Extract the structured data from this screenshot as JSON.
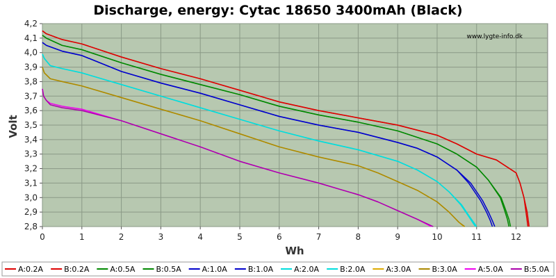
{
  "chart_data": {
    "type": "line",
    "title": "Discharge, energy: Cytac 18650 3400mAh (Black)",
    "xlabel": "Wh",
    "ylabel": "Volt",
    "watermark": "www.lygte-info.dk",
    "xlim": [
      0,
      12.8
    ],
    "ylim": [
      2.8,
      4.2
    ],
    "x_ticks": [
      0,
      1,
      2,
      3,
      4,
      5,
      6,
      7,
      8,
      9,
      10,
      11,
      12
    ],
    "y_ticks": [
      "4,2",
      "4,1",
      "4,0",
      "3,9",
      "3,8",
      "3,7",
      "3,6",
      "3,5",
      "3,4",
      "3,3",
      "3,2",
      "3,1",
      "3,0",
      "2,9",
      "2,8"
    ],
    "grid": true,
    "plot_background": "#b7c8b0",
    "legend_position": "bottom",
    "series": [
      {
        "name": "A:0.2A",
        "color": "#dd0000",
        "x": [
          0,
          0.1,
          0.5,
          1,
          2,
          3,
          4,
          5,
          6,
          7,
          8,
          9,
          10,
          10.5,
          11,
          11.5,
          12,
          12.1,
          12.2,
          12.25,
          12.3
        ],
        "y": [
          4.15,
          4.13,
          4.09,
          4.06,
          3.97,
          3.89,
          3.82,
          3.74,
          3.66,
          3.6,
          3.55,
          3.5,
          3.43,
          3.37,
          3.3,
          3.26,
          3.17,
          3.1,
          3.0,
          2.9,
          2.8
        ]
      },
      {
        "name": "B:0.2A",
        "color": "#dd0000",
        "x": [
          0,
          0.1,
          0.5,
          1,
          2,
          3,
          4,
          5,
          6,
          7,
          8,
          9,
          10,
          10.5,
          11,
          11.5,
          12,
          12.1,
          12.2,
          12.28,
          12.33
        ],
        "y": [
          4.15,
          4.13,
          4.09,
          4.06,
          3.97,
          3.89,
          3.82,
          3.74,
          3.66,
          3.6,
          3.55,
          3.5,
          3.43,
          3.37,
          3.3,
          3.26,
          3.17,
          3.1,
          3.0,
          2.9,
          2.8
        ]
      },
      {
        "name": "A:0.5A",
        "color": "#008800",
        "x": [
          0,
          0.1,
          0.5,
          1,
          2,
          3,
          4,
          5,
          6,
          7,
          8,
          9,
          10,
          10.5,
          11,
          11.3,
          11.6,
          11.7,
          11.78,
          11.82
        ],
        "y": [
          4.12,
          4.1,
          4.05,
          4.02,
          3.93,
          3.85,
          3.78,
          3.71,
          3.63,
          3.57,
          3.52,
          3.46,
          3.37,
          3.3,
          3.21,
          3.12,
          3.0,
          2.92,
          2.85,
          2.8
        ]
      },
      {
        "name": "B:0.5A",
        "color": "#008800",
        "x": [
          0,
          0.1,
          0.5,
          1,
          2,
          3,
          4,
          5,
          6,
          7,
          8,
          9,
          10,
          10.5,
          11,
          11.3,
          11.62,
          11.73,
          11.82,
          11.86
        ],
        "y": [
          4.12,
          4.1,
          4.05,
          4.02,
          3.93,
          3.85,
          3.78,
          3.71,
          3.63,
          3.57,
          3.52,
          3.46,
          3.37,
          3.3,
          3.21,
          3.12,
          3.0,
          2.92,
          2.85,
          2.8
        ]
      },
      {
        "name": "A:1.0A",
        "color": "#0000cc",
        "x": [
          0,
          0.1,
          0.5,
          1,
          2,
          3,
          4,
          5,
          6,
          7,
          8,
          9,
          9.5,
          10,
          10.5,
          10.8,
          11.1,
          11.25,
          11.35,
          11.4
        ],
        "y": [
          4.07,
          4.05,
          4.01,
          3.98,
          3.87,
          3.79,
          3.72,
          3.64,
          3.56,
          3.5,
          3.45,
          3.38,
          3.34,
          3.28,
          3.19,
          3.1,
          2.98,
          2.9,
          2.84,
          2.8
        ]
      },
      {
        "name": "B:1.0A",
        "color": "#0000cc",
        "x": [
          0,
          0.1,
          0.5,
          1,
          2,
          3,
          4,
          5,
          6,
          7,
          8,
          9,
          9.5,
          10,
          10.5,
          10.85,
          11.15,
          11.3,
          11.4,
          11.46
        ],
        "y": [
          4.07,
          4.05,
          4.01,
          3.98,
          3.87,
          3.79,
          3.72,
          3.64,
          3.56,
          3.5,
          3.45,
          3.38,
          3.34,
          3.28,
          3.19,
          3.1,
          2.98,
          2.9,
          2.84,
          2.8
        ]
      },
      {
        "name": "A:2.0A",
        "color": "#00dddd",
        "x": [
          0,
          0.05,
          0.2,
          0.5,
          1,
          2,
          3,
          4,
          5,
          6,
          7,
          8,
          9,
          9.5,
          10,
          10.3,
          10.6,
          10.8,
          10.92,
          10.97
        ],
        "y": [
          3.99,
          3.96,
          3.91,
          3.89,
          3.86,
          3.78,
          3.7,
          3.62,
          3.54,
          3.46,
          3.39,
          3.33,
          3.25,
          3.19,
          3.11,
          3.04,
          2.95,
          2.87,
          2.82,
          2.8
        ]
      },
      {
        "name": "B:2.0A",
        "color": "#00dddd",
        "x": [
          0,
          0.05,
          0.2,
          0.5,
          1,
          2,
          3,
          4,
          5,
          6,
          7,
          8,
          9,
          9.5,
          10,
          10.3,
          10.62,
          10.82,
          10.95,
          11.0
        ],
        "y": [
          3.99,
          3.96,
          3.91,
          3.89,
          3.86,
          3.78,
          3.7,
          3.62,
          3.54,
          3.46,
          3.39,
          3.33,
          3.25,
          3.19,
          3.11,
          3.04,
          2.95,
          2.87,
          2.82,
          2.8
        ]
      },
      {
        "name": "A:3.0A",
        "color": "#ddaa00",
        "x": [
          0,
          0.05,
          0.2,
          0.5,
          1,
          2,
          3,
          4,
          5,
          6,
          7,
          8,
          8.5,
          9,
          9.5,
          10,
          10.3,
          10.55,
          10.68
        ],
        "y": [
          3.9,
          3.86,
          3.82,
          3.8,
          3.77,
          3.69,
          3.61,
          3.53,
          3.44,
          3.35,
          3.28,
          3.22,
          3.17,
          3.11,
          3.05,
          2.97,
          2.9,
          2.83,
          2.8
        ]
      },
      {
        "name": "B:3.0A",
        "color": "#aa8800",
        "x": [
          0,
          0.05,
          0.2,
          0.5,
          1,
          2,
          3,
          4,
          5,
          6,
          7,
          8,
          8.5,
          9,
          9.5,
          10,
          10.3,
          10.55,
          10.7
        ],
        "y": [
          3.9,
          3.86,
          3.82,
          3.8,
          3.77,
          3.69,
          3.61,
          3.53,
          3.44,
          3.35,
          3.28,
          3.22,
          3.17,
          3.11,
          3.05,
          2.97,
          2.9,
          2.83,
          2.8
        ]
      },
      {
        "name": "A:5.0A",
        "color": "#ee00ee",
        "x": [
          0,
          0.03,
          0.1,
          0.2,
          0.5,
          1,
          2,
          3,
          4,
          5,
          6,
          7,
          7.5,
          8,
          8.5,
          9,
          9.5,
          9.85
        ],
        "y": [
          3.75,
          3.7,
          3.67,
          3.65,
          3.63,
          3.61,
          3.53,
          3.44,
          3.35,
          3.25,
          3.17,
          3.1,
          3.06,
          3.02,
          2.97,
          2.91,
          2.85,
          2.8
        ]
      },
      {
        "name": "B:5.0A",
        "color": "#aa00aa",
        "x": [
          0,
          0.03,
          0.1,
          0.2,
          0.5,
          1,
          2,
          3,
          4,
          5,
          6,
          7,
          7.5,
          8,
          8.5,
          9,
          9.5,
          9.9
        ],
        "y": [
          3.75,
          3.7,
          3.67,
          3.64,
          3.62,
          3.6,
          3.53,
          3.44,
          3.35,
          3.25,
          3.17,
          3.1,
          3.06,
          3.02,
          2.97,
          2.91,
          2.85,
          2.8
        ]
      }
    ]
  }
}
